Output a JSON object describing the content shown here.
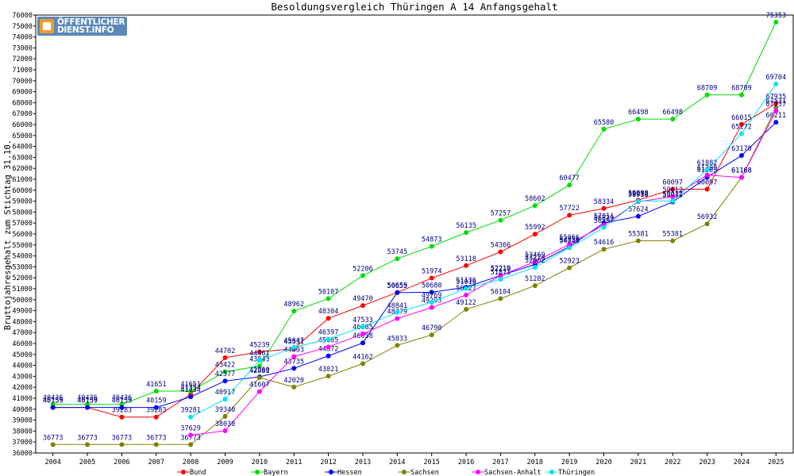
{
  "logo": {
    "line1": "ÖFFENTLICHER",
    "line2": "DIENST.INFO"
  },
  "chart_data": {
    "type": "line",
    "title": "Besoldungsvergleich Thüringen A 14 Anfangsgehalt",
    "xlabel": "",
    "ylabel": "Bruttojahresgehalt zum Stichtag 31.10.",
    "ylim": [
      36000,
      76000
    ],
    "ytick_step": 1000,
    "grid": false,
    "legend_position": "bottom",
    "x": [
      "2004",
      "2005",
      "2006",
      "2007",
      "2008",
      "2009",
      "2010",
      "2011",
      "2012",
      "2013",
      "2014",
      "2015",
      "2016",
      "2017",
      "2018",
      "2019",
      "2020",
      "2021",
      "2022",
      "2023",
      "2024",
      "2025"
    ],
    "series": [
      {
        "name": "Bund",
        "color": "#ff0000",
        "values": [
          40159,
          40159,
          39283,
          39283,
          41354,
          44702,
          45239,
          45531,
          48304,
          49470,
          50659,
          51974,
          53118,
          54366,
          55992,
          57722,
          58334,
          59098,
          60097,
          60097,
          66015,
          67935
        ]
      },
      {
        "name": "Bayern",
        "color": "#00dd00",
        "values": [
          40436,
          40436,
          40436,
          41651,
          41651,
          43422,
          43943,
          48962,
          50107,
          52206,
          53745,
          54873,
          56135,
          57257,
          58602,
          60477,
          65580,
          66498,
          66498,
          68709,
          68709,
          75353
        ]
      },
      {
        "name": "Hessen",
        "color": "#0000ff",
        "values": [
          40159,
          40159,
          40159,
          40159,
          41134,
          42577,
          42960,
          43735,
          44872,
          46058,
          50655,
          50680,
          51136,
          52219,
          53220,
          54856,
          57011,
          57624,
          58931,
          61203,
          63170,
          66211
        ]
      },
      {
        "name": "Sachsen",
        "color": "#808000",
        "values": [
          36773,
          36773,
          36773,
          36773,
          36773,
          39340,
          42881,
          42020,
          43021,
          44162,
          45833,
          46790,
          49122,
          50104,
          51282,
          52923,
          54616,
          55381,
          55381,
          56932,
          61168,
          67531
        ]
      },
      {
        "name": "Sachsen-Anhalt",
        "color": "#ff00ff",
        "values": [
          null,
          null,
          null,
          null,
          37629,
          38030,
          41607,
          44803,
          45685,
          46885,
          48279,
          49293,
          50427,
          52210,
          53469,
          55066,
          56829,
          58956,
          59412,
          61390,
          61168,
          67237
        ]
      },
      {
        "name": "Thüringen",
        "color": "#00e5ee",
        "values": [
          null,
          null,
          null,
          null,
          39281,
          40917,
          44461,
          45647,
          46397,
          47533,
          48841,
          49769,
          51016,
          51871,
          52962,
          54745,
          56597,
          59012,
          59012,
          61882,
          65172,
          69704
        ]
      }
    ]
  }
}
